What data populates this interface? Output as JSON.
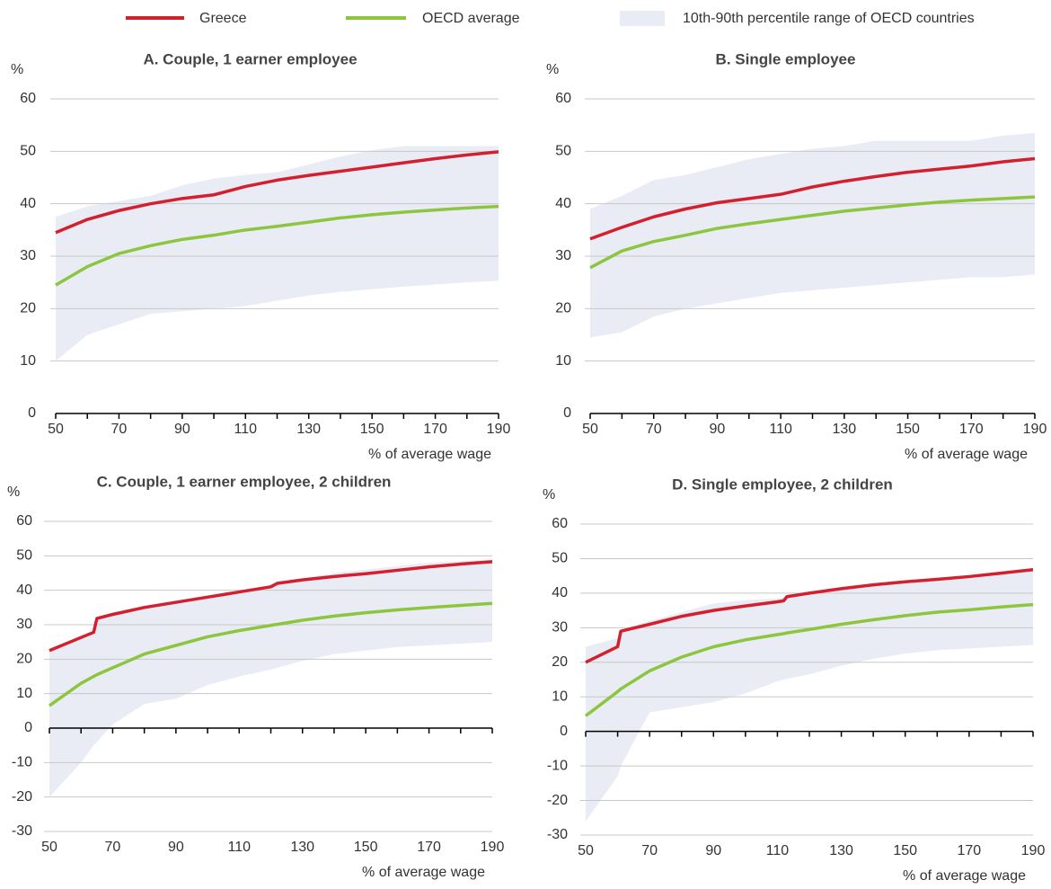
{
  "chart_data": [
    {
      "type": "line",
      "title": "A. Couple, 1 earner employee",
      "y_label": "%",
      "x_label": "% of average wage",
      "x": [
        50,
        60,
        70,
        80,
        90,
        100,
        110,
        120,
        130,
        140,
        150,
        160,
        170,
        180,
        190
      ],
      "xlim": [
        50,
        190
      ],
      "xticks": [
        50,
        70,
        90,
        110,
        130,
        150,
        170,
        190
      ],
      "xminor_ticks": [
        60,
        80,
        100,
        120,
        140,
        160,
        180
      ],
      "ylim": [
        0,
        60
      ],
      "yticks": [
        0,
        10,
        20,
        30,
        40,
        50,
        60
      ],
      "grid": true,
      "series": [
        {
          "name": "Greece",
          "color": "#d3202f",
          "values": [
            34.5,
            37,
            38.7,
            40,
            41,
            41.7,
            43.3,
            44.5,
            45.4,
            46.2,
            47,
            47.8,
            48.6,
            49.3,
            49.9
          ]
        },
        {
          "name": "OECD average",
          "color": "#8cc63f",
          "values": [
            24.5,
            28,
            30.5,
            32,
            33.2,
            34,
            35,
            35.7,
            36.5,
            37.3,
            37.9,
            38.4,
            38.8,
            39.2,
            39.5
          ]
        },
        {
          "name": "10th-90th percentile range of OECD countries",
          "color": "#e9ecf5",
          "upper": [
            37.5,
            39.5,
            40.5,
            41.5,
            43.5,
            44.8,
            45.5,
            46,
            47.5,
            49,
            50.2,
            51,
            51,
            51,
            51
          ],
          "lower": [
            10,
            15,
            17,
            19,
            19.5,
            20,
            20.5,
            21.5,
            22.5,
            23.2,
            23.7,
            24.2,
            24.6,
            25,
            25.3
          ]
        }
      ]
    },
    {
      "type": "line",
      "title": "B. Single employee",
      "y_label": "%",
      "x_label": "% of average wage",
      "x": [
        50,
        60,
        70,
        80,
        90,
        100,
        110,
        120,
        130,
        140,
        150,
        160,
        170,
        180,
        190
      ],
      "xlim": [
        50,
        190
      ],
      "xticks": [
        50,
        70,
        90,
        110,
        130,
        150,
        170,
        190
      ],
      "xminor_ticks": [
        60,
        80,
        100,
        120,
        140,
        160,
        180
      ],
      "ylim": [
        0,
        60
      ],
      "yticks": [
        0,
        10,
        20,
        30,
        40,
        50,
        60
      ],
      "grid": true,
      "series": [
        {
          "color": "#d3202f",
          "values": [
            33.3,
            35.5,
            37.5,
            39,
            40.2,
            41,
            41.8,
            43.2,
            44.3,
            45.2,
            46,
            46.6,
            47.2,
            48,
            48.6
          ]
        },
        {
          "color": "#8cc63f",
          "values": [
            27.8,
            31,
            32.8,
            34,
            35.3,
            36.2,
            37,
            37.8,
            38.6,
            39.2,
            39.8,
            40.3,
            40.7,
            41,
            41.3
          ]
        },
        {
          "color": "#e9ecf5",
          "upper": [
            39,
            41.5,
            44.5,
            45.5,
            47,
            48.5,
            49.5,
            50.5,
            51,
            52,
            52,
            52,
            52,
            53,
            53.5
          ],
          "lower": [
            14.5,
            15.5,
            18.5,
            20,
            21,
            22,
            23,
            23.5,
            24,
            24.5,
            25,
            25.5,
            26,
            26,
            26.5
          ]
        }
      ]
    },
    {
      "type": "line",
      "title": "C. Couple, 1 earner employee, 2 children",
      "y_label": "%",
      "x_label": "% of average wage",
      "x": [
        50,
        60,
        64,
        65,
        70,
        80,
        90,
        100,
        110,
        120,
        121,
        122,
        130,
        140,
        150,
        160,
        170,
        180,
        190
      ],
      "xlim": [
        50,
        190
      ],
      "xticks": [
        50,
        70,
        90,
        110,
        130,
        150,
        170,
        190
      ],
      "xminor_ticks": [
        60,
        80,
        100,
        120,
        140,
        160,
        180
      ],
      "ylim": [
        -30,
        60
      ],
      "yticks": [
        -30,
        -20,
        -10,
        0,
        10,
        20,
        30,
        40,
        50,
        60
      ],
      "grid": true,
      "series": [
        {
          "color": "#d3202f",
          "values": [
            22.5,
            26.3,
            27.8,
            31.8,
            33,
            35,
            36.5,
            38,
            39.5,
            41,
            41.5,
            42,
            43,
            44,
            44.8,
            45.8,
            46.8,
            47.6,
            48.3
          ]
        },
        {
          "color": "#8cc63f",
          "values": [
            6.5,
            13,
            15,
            15.5,
            17.5,
            21.5,
            24,
            26.5,
            28.3,
            29.8,
            30,
            30.1,
            31.3,
            32.5,
            33.5,
            34.3,
            35,
            35.6,
            36.2
          ]
        },
        {
          "color": "#e9ecf5",
          "upper": [
            22.5,
            26.3,
            28,
            32,
            33.5,
            35.5,
            37,
            38.5,
            40,
            41.2,
            41.5,
            42,
            43.5,
            45,
            46,
            47,
            48,
            48.5,
            49
          ],
          "lower": [
            -20,
            -10,
            -5,
            -4,
            1,
            7,
            8.5,
            12.5,
            15,
            17,
            17.2,
            17.5,
            19.5,
            21.5,
            22.5,
            23.5,
            24,
            24.5,
            25
          ]
        }
      ]
    },
    {
      "type": "line",
      "title": "D. Single employee, 2 children",
      "y_label": "%",
      "x_label": "% of average wage",
      "x": [
        50,
        60,
        61,
        70,
        80,
        90,
        100,
        110,
        112,
        113,
        120,
        130,
        140,
        150,
        160,
        170,
        180,
        190
      ],
      "xlim": [
        50,
        190
      ],
      "xticks": [
        50,
        70,
        90,
        110,
        130,
        150,
        170,
        190
      ],
      "xminor_ticks": [
        60,
        80,
        100,
        120,
        140,
        160,
        180
      ],
      "ylim": [
        -30,
        60
      ],
      "yticks": [
        -30,
        -20,
        -10,
        0,
        10,
        20,
        30,
        40,
        50,
        60
      ],
      "grid": true,
      "series": [
        {
          "color": "#d3202f",
          "values": [
            20,
            24.5,
            29,
            31,
            33.3,
            35,
            36.3,
            37.5,
            37.8,
            39,
            40,
            41.3,
            42.4,
            43.3,
            44,
            44.8,
            45.8,
            46.8
          ]
        },
        {
          "color": "#8cc63f",
          "values": [
            4.5,
            11.5,
            12.3,
            17.5,
            21.5,
            24.5,
            26.5,
            28,
            28.3,
            28.5,
            29.5,
            31,
            32.3,
            33.5,
            34.5,
            35.2,
            36,
            36.7
          ]
        },
        {
          "color": "#e9ecf5",
          "upper": [
            24.5,
            27,
            29.5,
            32,
            34.5,
            37,
            38,
            38.5,
            38.8,
            39.5,
            40.5,
            41.5,
            42.5,
            43.5,
            44.5,
            45,
            46,
            47.2
          ],
          "lower": [
            -26,
            -13,
            -10,
            5.5,
            7,
            8.5,
            11,
            14.5,
            15,
            15.2,
            16.5,
            19,
            21,
            22.5,
            23.5,
            24,
            24.5,
            25
          ]
        }
      ]
    }
  ]
}
